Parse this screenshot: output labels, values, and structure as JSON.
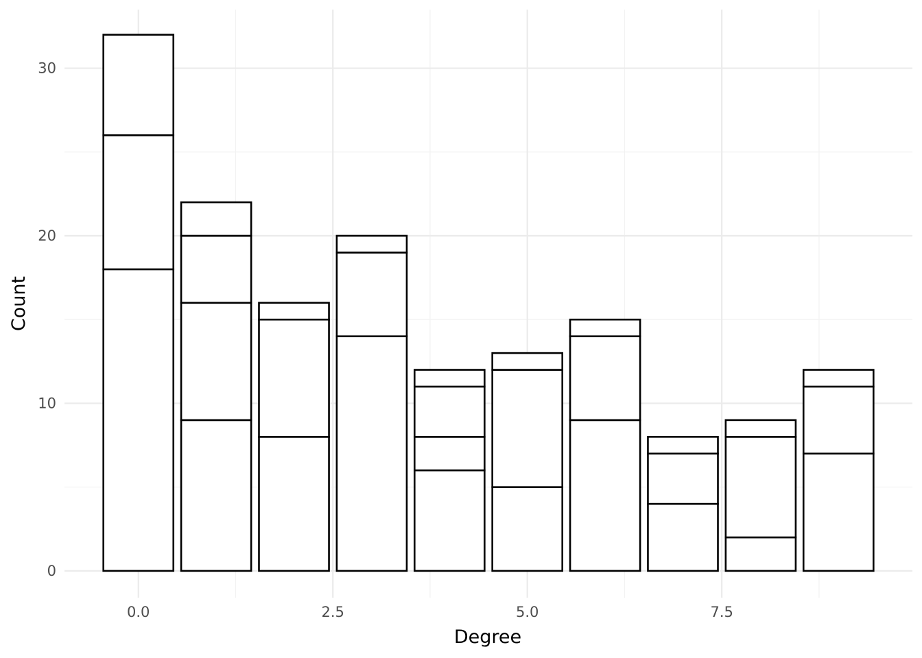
{
  "chart_data": {
    "type": "bar",
    "stacked": true,
    "xlabel": "Degree",
    "ylabel": "Count",
    "xlim": [
      -0.95,
      9.95
    ],
    "ylim": [
      -1.6,
      33.5
    ],
    "x_ticks": [
      {
        "value": 0.0,
        "label": "0.0"
      },
      {
        "value": 2.5,
        "label": "2.5"
      },
      {
        "value": 5.0,
        "label": "5.0"
      },
      {
        "value": 7.5,
        "label": "7.5"
      }
    ],
    "x_minor_ticks": [
      1.25,
      3.75,
      6.25,
      8.75
    ],
    "y_ticks": [
      {
        "value": 0,
        "label": "0"
      },
      {
        "value": 10,
        "label": "10"
      },
      {
        "value": 20,
        "label": "20"
      },
      {
        "value": 30,
        "label": "30"
      }
    ],
    "y_minor_ticks": [
      5,
      15,
      25
    ],
    "bar_width": 0.9,
    "bars": [
      {
        "x": 0,
        "boundaries": [
          18,
          26,
          32
        ]
      },
      {
        "x": 1,
        "boundaries": [
          9,
          16,
          20,
          22
        ]
      },
      {
        "x": 2,
        "boundaries": [
          8,
          15,
          16
        ]
      },
      {
        "x": 3,
        "boundaries": [
          14,
          19,
          20
        ]
      },
      {
        "x": 4,
        "boundaries": [
          6,
          8,
          11,
          12
        ]
      },
      {
        "x": 5,
        "boundaries": [
          5,
          12,
          13
        ]
      },
      {
        "x": 6,
        "boundaries": [
          9,
          14,
          15
        ]
      },
      {
        "x": 7,
        "boundaries": [
          4,
          7,
          8
        ]
      },
      {
        "x": 8,
        "boundaries": [
          2,
          8,
          9
        ]
      },
      {
        "x": 9,
        "boundaries": [
          7,
          11,
          12
        ]
      }
    ],
    "grid": true,
    "fill": "#ffffff",
    "outline": "#000000"
  }
}
